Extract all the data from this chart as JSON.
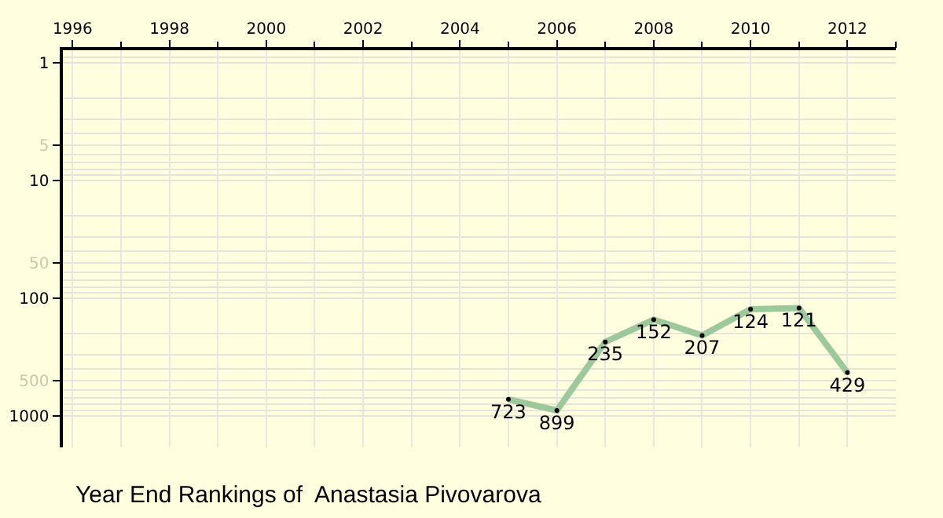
{
  "chart_data": {
    "type": "line",
    "title": "Year End Rankings of  Anastasia Pivovarova",
    "x": [
      2005,
      2006,
      2007,
      2008,
      2009,
      2010,
      2011,
      2012
    ],
    "values": [
      723,
      899,
      235,
      152,
      207,
      124,
      121,
      429
    ],
    "color": "#9cc89c",
    "marker": "circle",
    "data_labels": true,
    "log": true,
    "grid": true,
    "xlim": [
      1995.8,
      2013
    ],
    "xticks": [
      1996,
      1998,
      2000,
      2002,
      2004,
      2006,
      2008,
      2010,
      2012
    ],
    "ylim": [
      1850,
      0.78
    ],
    "yticks": [
      1,
      5,
      10,
      50,
      100,
      500,
      1000
    ]
  }
}
